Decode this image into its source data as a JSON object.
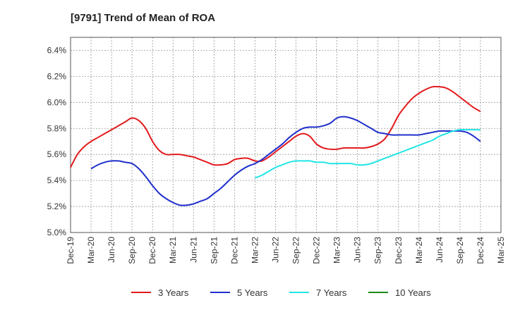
{
  "chart_data": {
    "type": "line",
    "title": "[9791]  Trend of Mean of ROA",
    "xlabel": "",
    "ylabel": "",
    "x_tick_labels": [
      "Dec-19",
      "Mar-20",
      "Jun-20",
      "Sep-20",
      "Dec-20",
      "Mar-21",
      "Jun-21",
      "Sep-21",
      "Dec-21",
      "Mar-22",
      "Jun-22",
      "Sep-22",
      "Dec-22",
      "Mar-23",
      "Jun-23",
      "Sep-23",
      "Dec-23",
      "Mar-24",
      "Jun-24",
      "Sep-24",
      "Dec-24",
      "Mar-25"
    ],
    "y_tick_labels": [
      "5.0%",
      "5.2%",
      "5.4%",
      "5.6%",
      "5.8%",
      "6.0%",
      "6.2%",
      "6.4%"
    ],
    "ylim": [
      5.0,
      6.5
    ],
    "y_unit": "%",
    "grid": true,
    "legend_position": "bottom",
    "series": [
      {
        "name": "3 Years",
        "color": "#e31a1c",
        "points": [
          [
            "Dec-19",
            5.5
          ],
          [
            "Jan-20",
            5.6
          ],
          [
            "Feb-20",
            5.66
          ],
          [
            "Mar-20",
            5.7
          ],
          [
            "Apr-20",
            5.73
          ],
          [
            "May-20",
            5.76
          ],
          [
            "Jun-20",
            5.79
          ],
          [
            "Jul-20",
            5.82
          ],
          [
            "Aug-20",
            5.85
          ],
          [
            "Sep-20",
            5.88
          ],
          [
            "Oct-20",
            5.86
          ],
          [
            "Nov-20",
            5.8
          ],
          [
            "Dec-20",
            5.7
          ],
          [
            "Jan-21",
            5.63
          ],
          [
            "Feb-21",
            5.6
          ],
          [
            "Mar-21",
            5.6
          ],
          [
            "Apr-21",
            5.6
          ],
          [
            "May-21",
            5.59
          ],
          [
            "Jun-21",
            5.58
          ],
          [
            "Jul-21",
            5.56
          ],
          [
            "Aug-21",
            5.54
          ],
          [
            "Sep-21",
            5.52
          ],
          [
            "Oct-21",
            5.52
          ],
          [
            "Nov-21",
            5.53
          ],
          [
            "Dec-21",
            5.56
          ],
          [
            "Jan-22",
            5.57
          ],
          [
            "Feb-22",
            5.57
          ],
          [
            "Mar-22",
            5.55
          ],
          [
            "Apr-22",
            5.55
          ],
          [
            "May-22",
            5.58
          ],
          [
            "Jun-22",
            5.62
          ],
          [
            "Jul-22",
            5.66
          ],
          [
            "Aug-22",
            5.7
          ],
          [
            "Sep-22",
            5.74
          ],
          [
            "Oct-22",
            5.76
          ],
          [
            "Nov-22",
            5.74
          ],
          [
            "Dec-22",
            5.68
          ],
          [
            "Jan-23",
            5.65
          ],
          [
            "Feb-23",
            5.64
          ],
          [
            "Mar-23",
            5.64
          ],
          [
            "Apr-23",
            5.65
          ],
          [
            "May-23",
            5.65
          ],
          [
            "Jun-23",
            5.65
          ],
          [
            "Jul-23",
            5.65
          ],
          [
            "Aug-23",
            5.66
          ],
          [
            "Sep-23",
            5.68
          ],
          [
            "Oct-23",
            5.72
          ],
          [
            "Nov-23",
            5.8
          ],
          [
            "Dec-23",
            5.9
          ],
          [
            "Jan-24",
            5.97
          ],
          [
            "Feb-24",
            6.03
          ],
          [
            "Mar-24",
            6.07
          ],
          [
            "Apr-24",
            6.1
          ],
          [
            "May-24",
            6.12
          ],
          [
            "Jun-24",
            6.12
          ],
          [
            "Jul-24",
            6.11
          ],
          [
            "Aug-24",
            6.08
          ],
          [
            "Sep-24",
            6.04
          ],
          [
            "Oct-24",
            6.0
          ],
          [
            "Nov-24",
            5.96
          ],
          [
            "Dec-24",
            5.93
          ]
        ]
      },
      {
        "name": "5 Years",
        "color": "#1f2fcc",
        "points": [
          [
            "Mar-20",
            5.49
          ],
          [
            "Apr-20",
            5.52
          ],
          [
            "May-20",
            5.54
          ],
          [
            "Jun-20",
            5.55
          ],
          [
            "Jul-20",
            5.55
          ],
          [
            "Aug-20",
            5.54
          ],
          [
            "Sep-20",
            5.53
          ],
          [
            "Oct-20",
            5.49
          ],
          [
            "Nov-20",
            5.43
          ],
          [
            "Dec-20",
            5.36
          ],
          [
            "Jan-21",
            5.3
          ],
          [
            "Feb-21",
            5.26
          ],
          [
            "Mar-21",
            5.23
          ],
          [
            "Apr-21",
            5.21
          ],
          [
            "May-21",
            5.21
          ],
          [
            "Jun-21",
            5.22
          ],
          [
            "Jul-21",
            5.24
          ],
          [
            "Aug-21",
            5.26
          ],
          [
            "Sep-21",
            5.3
          ],
          [
            "Oct-21",
            5.34
          ],
          [
            "Nov-21",
            5.39
          ],
          [
            "Dec-21",
            5.44
          ],
          [
            "Jan-22",
            5.48
          ],
          [
            "Feb-22",
            5.51
          ],
          [
            "Mar-22",
            5.53
          ],
          [
            "Apr-22",
            5.56
          ],
          [
            "May-22",
            5.6
          ],
          [
            "Jun-22",
            5.64
          ],
          [
            "Jul-22",
            5.68
          ],
          [
            "Aug-22",
            5.73
          ],
          [
            "Sep-22",
            5.77
          ],
          [
            "Oct-22",
            5.8
          ],
          [
            "Nov-22",
            5.81
          ],
          [
            "Dec-22",
            5.81
          ],
          [
            "Jan-23",
            5.82
          ],
          [
            "Feb-23",
            5.84
          ],
          [
            "Mar-23",
            5.88
          ],
          [
            "Apr-23",
            5.89
          ],
          [
            "May-23",
            5.88
          ],
          [
            "Jun-23",
            5.86
          ],
          [
            "Jul-23",
            5.83
          ],
          [
            "Aug-23",
            5.8
          ],
          [
            "Sep-23",
            5.77
          ],
          [
            "Oct-23",
            5.76
          ],
          [
            "Nov-23",
            5.75
          ],
          [
            "Dec-23",
            5.75
          ],
          [
            "Jan-24",
            5.75
          ],
          [
            "Feb-24",
            5.75
          ],
          [
            "Mar-24",
            5.75
          ],
          [
            "Apr-24",
            5.76
          ],
          [
            "May-24",
            5.77
          ],
          [
            "Jun-24",
            5.78
          ],
          [
            "Jul-24",
            5.78
          ],
          [
            "Aug-24",
            5.78
          ],
          [
            "Sep-24",
            5.78
          ],
          [
            "Oct-24",
            5.77
          ],
          [
            "Nov-24",
            5.74
          ],
          [
            "Dec-24",
            5.7
          ]
        ]
      },
      {
        "name": "7 Years",
        "color": "#22e5e5",
        "points": [
          [
            "Mar-22",
            5.42
          ],
          [
            "Apr-22",
            5.44
          ],
          [
            "May-22",
            5.47
          ],
          [
            "Jun-22",
            5.5
          ],
          [
            "Jul-22",
            5.52
          ],
          [
            "Aug-22",
            5.54
          ],
          [
            "Sep-22",
            5.55
          ],
          [
            "Oct-22",
            5.55
          ],
          [
            "Nov-22",
            5.55
          ],
          [
            "Dec-22",
            5.54
          ],
          [
            "Jan-23",
            5.54
          ],
          [
            "Feb-23",
            5.53
          ],
          [
            "Mar-23",
            5.53
          ],
          [
            "Apr-23",
            5.53
          ],
          [
            "May-23",
            5.53
          ],
          [
            "Jun-23",
            5.52
          ],
          [
            "Jul-23",
            5.52
          ],
          [
            "Aug-23",
            5.53
          ],
          [
            "Sep-23",
            5.55
          ],
          [
            "Oct-23",
            5.57
          ],
          [
            "Nov-23",
            5.59
          ],
          [
            "Dec-23",
            5.61
          ],
          [
            "Jan-24",
            5.63
          ],
          [
            "Feb-24",
            5.65
          ],
          [
            "Mar-24",
            5.67
          ],
          [
            "Apr-24",
            5.69
          ],
          [
            "May-24",
            5.71
          ],
          [
            "Jun-24",
            5.74
          ],
          [
            "Jul-24",
            5.76
          ],
          [
            "Aug-24",
            5.78
          ],
          [
            "Sep-24",
            5.79
          ],
          [
            "Oct-24",
            5.79
          ],
          [
            "Nov-24",
            5.79
          ],
          [
            "Dec-24",
            5.79
          ]
        ]
      },
      {
        "name": "10 Years",
        "color": "#1a8a1a",
        "points": []
      }
    ]
  }
}
